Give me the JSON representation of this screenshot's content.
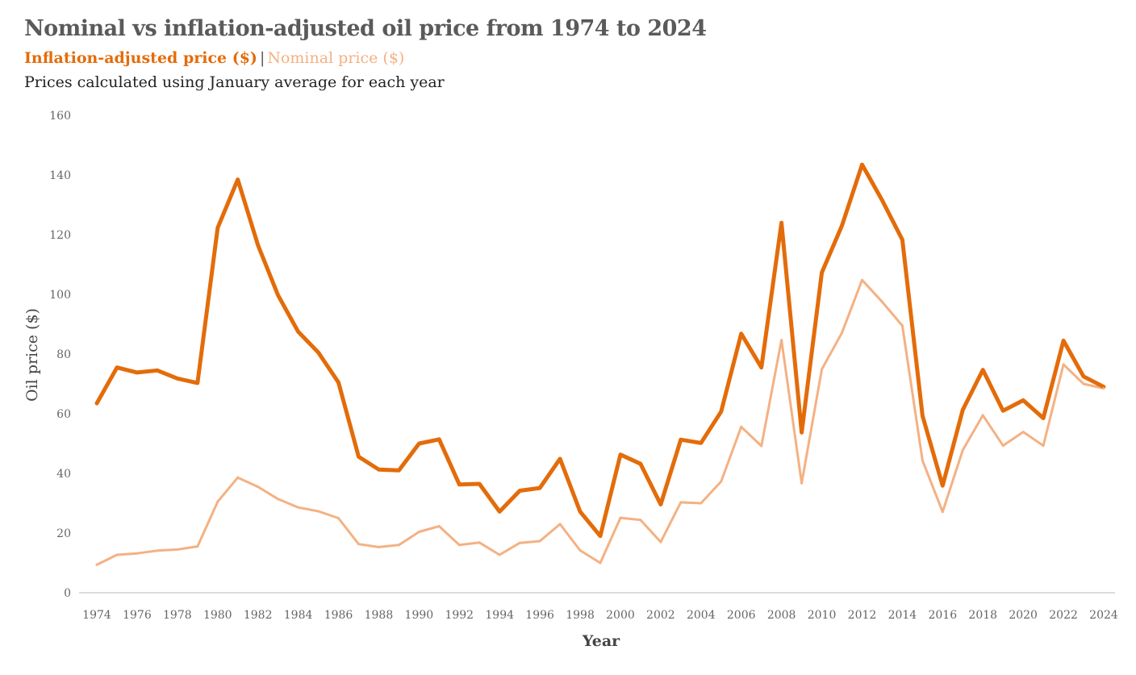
{
  "chart_data": {
    "type": "line",
    "title": "Nominal vs inflation-adjusted oil price from 1974 to 2024",
    "subtitle": "Prices calculated using January average for each year",
    "legend_separator": "|",
    "xlabel": "Year",
    "ylabel": "Oil price ($)",
    "ylim": [
      0,
      160
    ],
    "yticks": [
      0,
      20,
      40,
      60,
      80,
      100,
      120,
      140,
      160
    ],
    "grid": false,
    "colors": {
      "inflation": "#e36c0a",
      "nominal": "#f4b183"
    },
    "x": [
      1974,
      1975,
      1976,
      1977,
      1978,
      1979,
      1980,
      1981,
      1982,
      1983,
      1984,
      1985,
      1986,
      1987,
      1988,
      1989,
      1990,
      1991,
      1992,
      1993,
      1994,
      1995,
      1996,
      1997,
      1998,
      1999,
      2000,
      2001,
      2002,
      2003,
      2004,
      2005,
      2006,
      2007,
      2008,
      2009,
      2010,
      2011,
      2012,
      2013,
      2014,
      2015,
      2016,
      2017,
      2018,
      2019,
      2020,
      2021,
      2022,
      2023,
      2024
    ],
    "x_tick_labels": [
      "1974",
      "1976",
      "1978",
      "1980",
      "1982",
      "1984",
      "1986",
      "1988",
      "1990",
      "1992",
      "1994",
      "1996",
      "1998",
      "2000",
      "2002",
      "2004",
      "2006",
      "2008",
      "2010",
      "2012",
      "2014",
      "2016",
      "2018",
      "2020",
      "2022",
      "2024"
    ],
    "series": [
      {
        "name": "Inflation-adjusted price ($)",
        "values": [
          63.5,
          75.5,
          73.8,
          74.5,
          71.8,
          70.3,
          122.3,
          138.5,
          116.5,
          99.7,
          87.5,
          80.5,
          70.5,
          45.6,
          41.3,
          41.0,
          50.0,
          51.4,
          36.3,
          36.5,
          27.2,
          34.2,
          35.1,
          44.9,
          27.2,
          19.0,
          46.3,
          43.2,
          29.6,
          51.3,
          50.2,
          60.7,
          86.8,
          75.5,
          124.0,
          53.7,
          107.3,
          123.0,
          143.5,
          131.5,
          118.3,
          59.3,
          35.9,
          61.3,
          74.7,
          61.0,
          64.5,
          58.5,
          84.5,
          72.5,
          69.0
        ]
      },
      {
        "name": "Nominal price ($)",
        "values": [
          9.4,
          12.7,
          13.2,
          14.1,
          14.5,
          15.5,
          30.5,
          38.6,
          35.5,
          31.4,
          28.6,
          27.3,
          25.0,
          16.3,
          15.3,
          16.0,
          20.4,
          22.3,
          16.0,
          16.8,
          12.7,
          16.7,
          17.3,
          23.0,
          14.2,
          10.0,
          25.1,
          24.4,
          17.0,
          30.3,
          30.0,
          37.3,
          55.6,
          49.2,
          84.7,
          36.7,
          74.9,
          87.1,
          104.8,
          97.5,
          89.5,
          44.3,
          27.1,
          47.8,
          59.5,
          49.3,
          53.9,
          49.3,
          76.5,
          70.0,
          68.5
        ]
      }
    ]
  }
}
